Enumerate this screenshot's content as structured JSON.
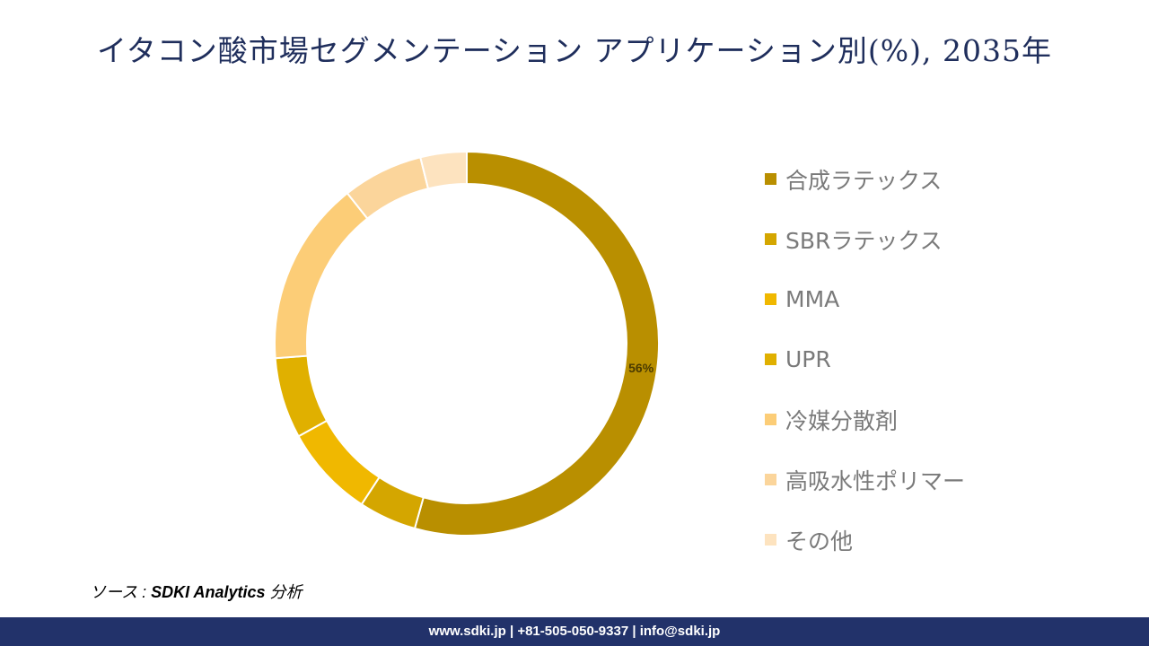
{
  "title": "イタコン酸市場セグメンテーション アプリケーション別(%), 2035年",
  "chart_data": {
    "type": "pie",
    "style": "donut",
    "title": "イタコン酸市場セグメンテーション アプリケーション別(%), 2035年",
    "legend_position": "right",
    "label_suffix": "%",
    "series": [
      {
        "name": "合成ラテックス",
        "value": 56,
        "color": "#b98f00",
        "label": "56%"
      },
      {
        "name": "SBRラテックス",
        "value": 5,
        "color": "#d4a600",
        "label": null
      },
      {
        "name": "MMA",
        "value": 8,
        "color": "#f0b800",
        "label": null
      },
      {
        "name": "UPR",
        "value": 7,
        "color": "#e0b000",
        "label": null
      },
      {
        "name": "冷媒分散剤",
        "value": 16,
        "color": "#fccd77",
        "label": null
      },
      {
        "name": "高吸水性ポリマー",
        "value": 7,
        "color": "#fbd59b",
        "label": null
      },
      {
        "name": "その他",
        "value": 4,
        "color": "#fde3bf",
        "label": null
      }
    ]
  },
  "source": {
    "prefix": "ソース : ",
    "brand": "SDKI Analytics",
    "suffix": " 分析"
  },
  "footer": "www.sdki.jp | +81-505-050-9337 | info@sdki.jp"
}
